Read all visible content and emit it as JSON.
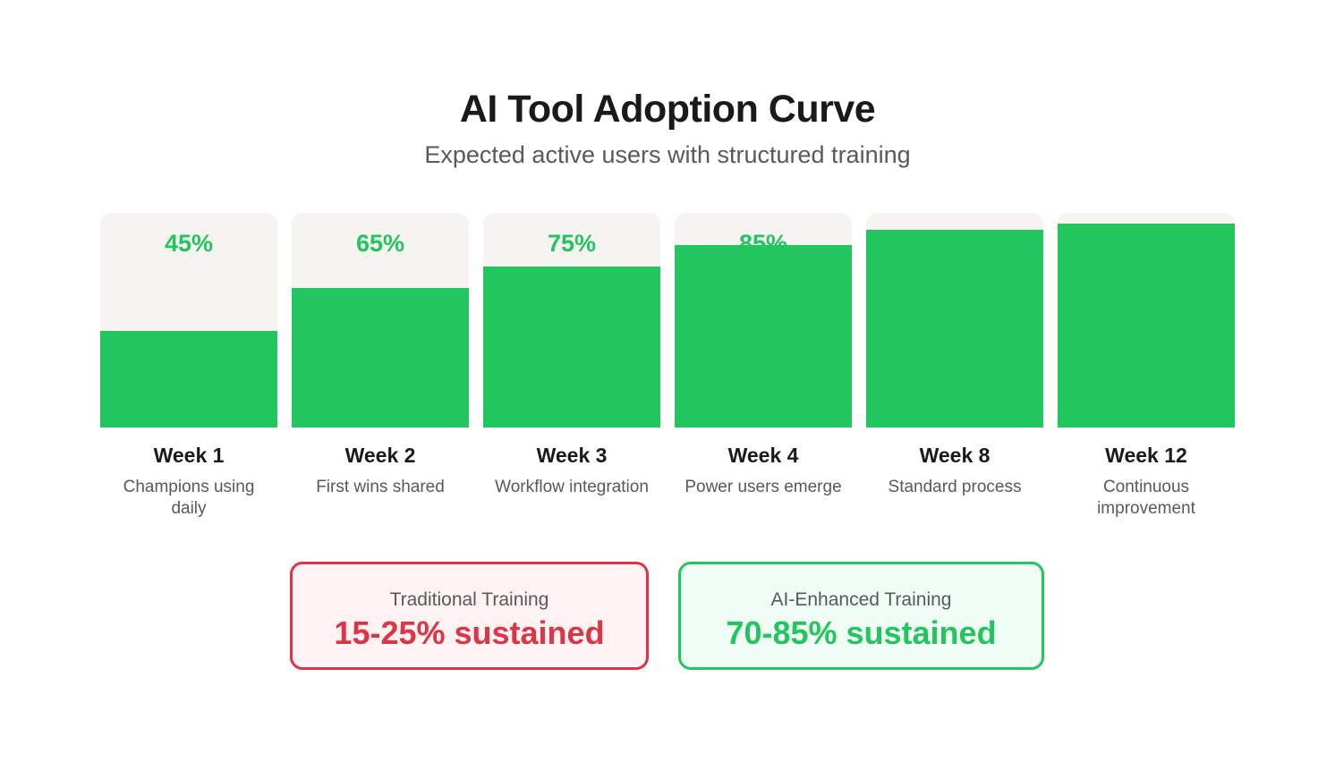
{
  "title": "AI Tool Adoption Curve",
  "subtitle": "Expected active users with structured training",
  "colors": {
    "bar": "#22c55e",
    "track": "#f5f4f1",
    "traditional": "#dc3545",
    "ai_enhanced": "#22c55e"
  },
  "chart_data": {
    "type": "bar",
    "title": "AI Tool Adoption Curve",
    "subtitle": "Expected active users with structured training",
    "categories": [
      "Week 1",
      "Week 2",
      "Week 3",
      "Week 4",
      "Week 8",
      "Week 12"
    ],
    "descriptions": [
      "Champions using daily",
      "First wins shared",
      "Workflow integration",
      "Power users emerge",
      "Standard process",
      "Continuous improvement"
    ],
    "values": [
      45,
      65,
      75,
      85,
      92,
      95
    ],
    "value_labels": [
      "45%",
      "65%",
      "75%",
      "85%",
      "",
      ""
    ],
    "ylim": [
      0,
      100
    ],
    "xlabel": "",
    "ylabel": "",
    "grid": false
  },
  "comparison": {
    "traditional": {
      "label": "Traditional Training",
      "value": "15-25% sustained"
    },
    "ai_enhanced": {
      "label": "AI-Enhanced Training",
      "value": "70-85% sustained"
    }
  }
}
